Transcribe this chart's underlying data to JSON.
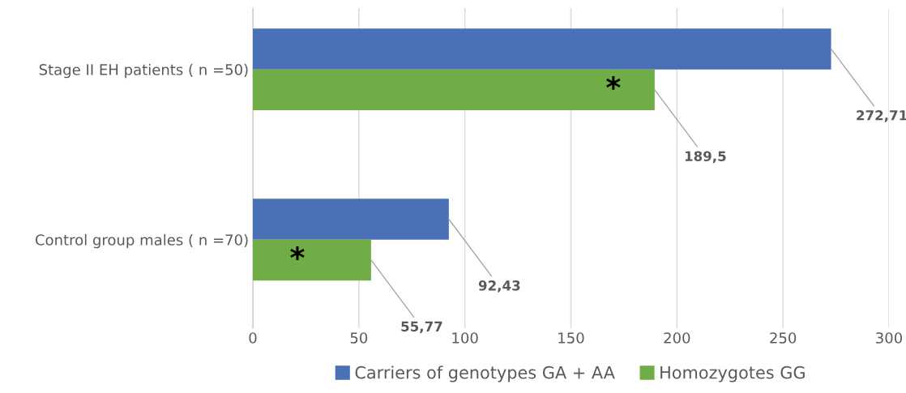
{
  "chart_data": {
    "type": "bar",
    "orientation": "horizontal",
    "categories": [
      "Stage II EH patients ( n =50)",
      "Control group males ( n =70)"
    ],
    "series": [
      {
        "name": "Carriers of genotypes GA + AA",
        "color": "#4a70b6",
        "values": [
          272.71,
          92.43
        ],
        "value_labels": [
          "272,71",
          "92,43"
        ]
      },
      {
        "name": "Homozygotes GG",
        "color": "#70ad47",
        "values": [
          189.5,
          55.77
        ],
        "value_labels": [
          "189,5",
          "55,77"
        ]
      }
    ],
    "xlim": [
      0,
      300
    ],
    "xticks": [
      0,
      50,
      100,
      150,
      200,
      250,
      300
    ],
    "grid": "x",
    "legend": "bottom",
    "annotations": [
      {
        "text": "*",
        "x": 170,
        "y": "Stage II EH patients ( n =50)"
      },
      {
        "text": "*",
        "x": 21,
        "y": "Control group males ( n =70)"
      }
    ]
  }
}
